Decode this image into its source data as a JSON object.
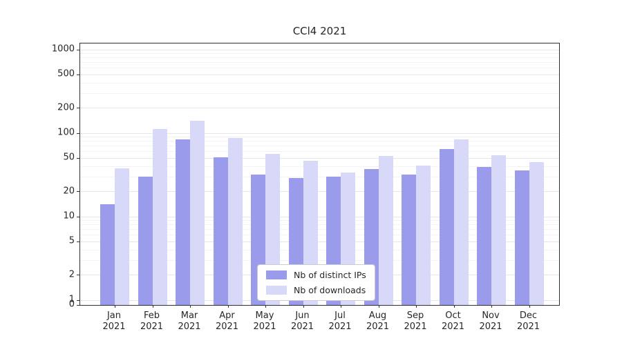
{
  "chart_data": {
    "type": "bar",
    "title": "CCl4 2021",
    "x_year": "2021",
    "categories": [
      "Jan",
      "Feb",
      "Mar",
      "Apr",
      "May",
      "Jun",
      "Jul",
      "Aug",
      "Sep",
      "Oct",
      "Nov",
      "Dec"
    ],
    "series": [
      {
        "name": "Nb of distinct IPs",
        "color": "#9b9beb",
        "values": [
          14,
          30,
          85,
          51,
          32,
          29,
          30,
          37,
          32,
          64,
          39,
          36
        ]
      },
      {
        "name": "Nb of downloads",
        "color": "#d8d8f8",
        "values": [
          38,
          112,
          140,
          88,
          57,
          47,
          34,
          53,
          41,
          85,
          54,
          45
        ]
      }
    ],
    "yticks": [
      0,
      1,
      2,
      5,
      10,
      20,
      50,
      100,
      200,
      500,
      1000
    ],
    "yscale": "symlog",
    "ylim": [
      0,
      1200
    ],
    "grid": true,
    "legend_position": "lower center"
  }
}
